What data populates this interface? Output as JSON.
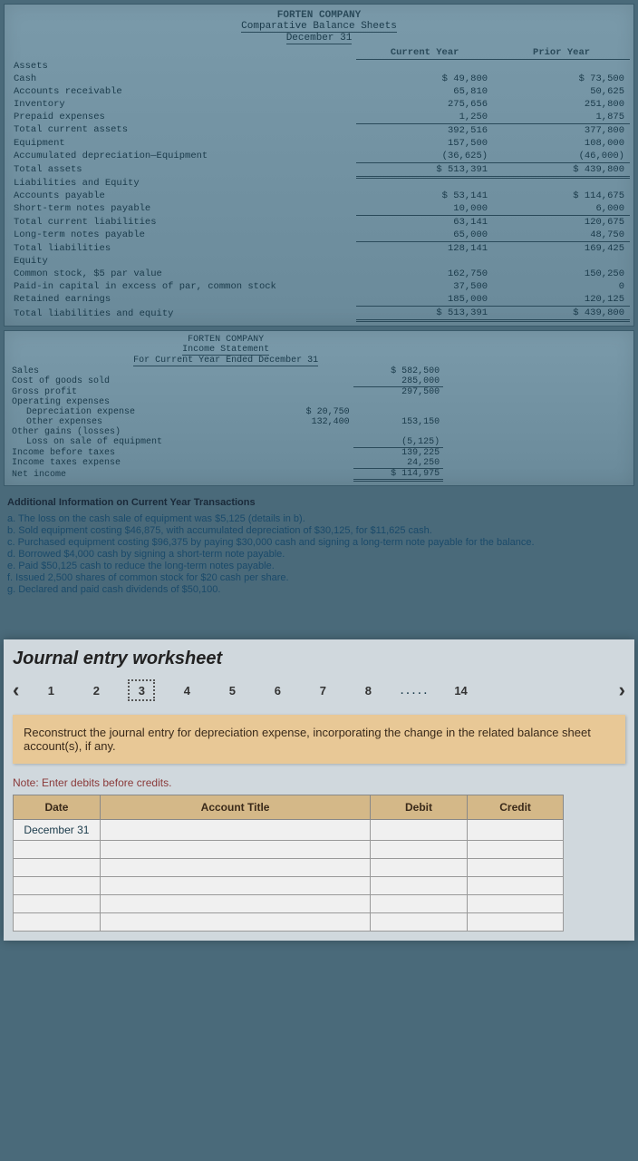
{
  "bs": {
    "company": "FORTEN COMPANY",
    "title": "Comparative Balance Sheets",
    "date": "December 31",
    "col_current": "Current Year",
    "col_prior": "Prior Year",
    "sections": {
      "assets_hdr": "Assets",
      "liab_hdr": "Liabilities and Equity",
      "equity_hdr": "Equity"
    },
    "rows": {
      "cash": {
        "l": "Cash",
        "c": "$ 49,800",
        "p": "$ 73,500"
      },
      "ar": {
        "l": "Accounts receivable",
        "c": "65,810",
        "p": "50,625"
      },
      "inv": {
        "l": "Inventory",
        "c": "275,656",
        "p": "251,800"
      },
      "prepaid": {
        "l": "Prepaid expenses",
        "c": "1,250",
        "p": "1,875"
      },
      "tca": {
        "l": "Total current assets",
        "c": "392,516",
        "p": "377,800"
      },
      "equip": {
        "l": "Equipment",
        "c": "157,500",
        "p": "108,000"
      },
      "accdep": {
        "l": "Accumulated depreciation—Equipment",
        "c": "(36,625)",
        "p": "(46,000)"
      },
      "ta": {
        "l": "Total assets",
        "c": "$ 513,391",
        "p": "$ 439,800"
      },
      "ap": {
        "l": "Accounts payable",
        "c": "$ 53,141",
        "p": "$ 114,675"
      },
      "stnp": {
        "l": "Short-term notes payable",
        "c": "10,000",
        "p": "6,000"
      },
      "tcl": {
        "l": "Total current liabilities",
        "c": "63,141",
        "p": "120,675"
      },
      "ltnp": {
        "l": "Long-term notes payable",
        "c": "65,000",
        "p": "48,750"
      },
      "tl": {
        "l": "Total liabilities",
        "c": "128,141",
        "p": "169,425"
      },
      "cs": {
        "l": "Common stock, $5 par value",
        "c": "162,750",
        "p": "150,250"
      },
      "pic": {
        "l": "Paid-in capital in excess of par, common stock",
        "c": "37,500",
        "p": "0"
      },
      "re": {
        "l": "Retained earnings",
        "c": "185,000",
        "p": "120,125"
      },
      "tle": {
        "l": "Total liabilities and equity",
        "c": "$ 513,391",
        "p": "$ 439,800"
      }
    }
  },
  "is": {
    "company": "FORTEN COMPANY",
    "title": "Income Statement",
    "period": "For Current Year Ended December 31",
    "rows": {
      "sales": {
        "l": "Sales",
        "v2": "$ 582,500"
      },
      "cogs": {
        "l": "Cost of goods sold",
        "v2": "285,000"
      },
      "gp": {
        "l": "Gross profit",
        "v2": "297,500"
      },
      "opex": {
        "l": "Operating expenses"
      },
      "dep": {
        "l": "Depreciation expense",
        "v1": "$ 20,750"
      },
      "other": {
        "l": "Other expenses",
        "v1": "132,400",
        "v2": "153,150"
      },
      "gains": {
        "l": "Other gains (losses)"
      },
      "loss": {
        "l": "Loss on sale of equipment",
        "v2": "(5,125)"
      },
      "ibt": {
        "l": "Income before taxes",
        "v2": "139,225"
      },
      "tax": {
        "l": "Income taxes expense",
        "v2": "24,250"
      },
      "ni": {
        "l": "Net income",
        "v2": "$ 114,975"
      }
    }
  },
  "info": {
    "title": "Additional Information on Current Year Transactions",
    "a": "a. The loss on the cash sale of equipment was $5,125 (details in b).",
    "b": "b. Sold equipment costing $46,875, with accumulated depreciation of $30,125, for $11,625 cash.",
    "c": "c. Purchased equipment costing $96,375 by paying $30,000 cash and signing a long-term note payable for the balance.",
    "d": "d. Borrowed $4,000 cash by signing a short-term note payable.",
    "e": "e. Paid $50,125 cash to reduce the long-term notes payable.",
    "f": "f. Issued 2,500 shares of common stock for $20 cash per share.",
    "g": "g. Declared and paid cash dividends of $50,100."
  },
  "journal": {
    "heading": "Journal entry worksheet",
    "tabs": [
      "1",
      "2",
      "3",
      "4",
      "5",
      "6",
      "7",
      "8"
    ],
    "dots": ".....",
    "last_tab": "14",
    "instruction": "Reconstruct the journal entry for depreciation expense, incorporating the change in the related balance sheet account(s), if any.",
    "note": "Note: Enter debits before credits.",
    "headers": {
      "date": "Date",
      "acct": "Account Title",
      "debit": "Debit",
      "credit": "Credit"
    },
    "date_val": "December 31"
  }
}
